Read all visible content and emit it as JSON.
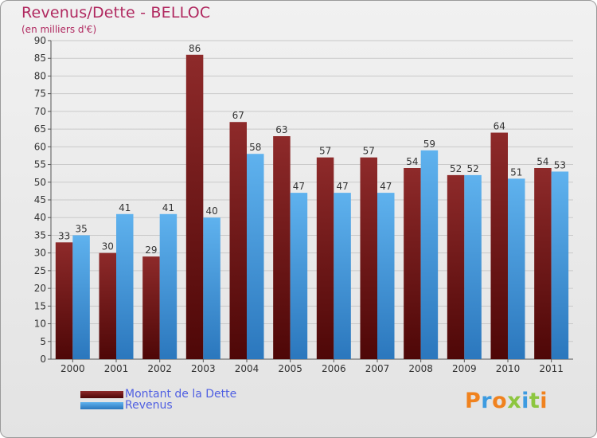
{
  "chart_data": {
    "type": "bar",
    "title": "Revenus/Dette - BELLOC",
    "subtitle": "(en milliers d'€)",
    "categories": [
      "2000",
      "2001",
      "2002",
      "2003",
      "2004",
      "2005",
      "2006",
      "2007",
      "2008",
      "2009",
      "2010",
      "2011"
    ],
    "series": [
      {
        "name": "Montant de la Dette",
        "color": "#7a1c1c",
        "values": [
          33,
          30,
          29,
          86,
          67,
          63,
          57,
          57,
          54,
          52,
          64,
          54
        ]
      },
      {
        "name": "Revenus",
        "color": "#4aa3e6",
        "values": [
          35,
          41,
          41,
          40,
          58,
          47,
          47,
          47,
          59,
          52,
          51,
          53
        ]
      }
    ],
    "ylim": [
      0,
      90
    ],
    "yticks": [
      0,
      5,
      10,
      15,
      20,
      25,
      30,
      35,
      40,
      45,
      50,
      55,
      60,
      65,
      70,
      75,
      80,
      85,
      90
    ],
    "grid": true,
    "legend": "bottom-left"
  },
  "brand": {
    "letters": [
      "P",
      "r",
      "o",
      "x",
      "i",
      "t",
      "i"
    ],
    "colors": [
      "#f0821e",
      "#3d9be0",
      "#f0821e",
      "#8dc63f",
      "#3d9be0",
      "#8dc63f",
      "#f0821e"
    ]
  }
}
